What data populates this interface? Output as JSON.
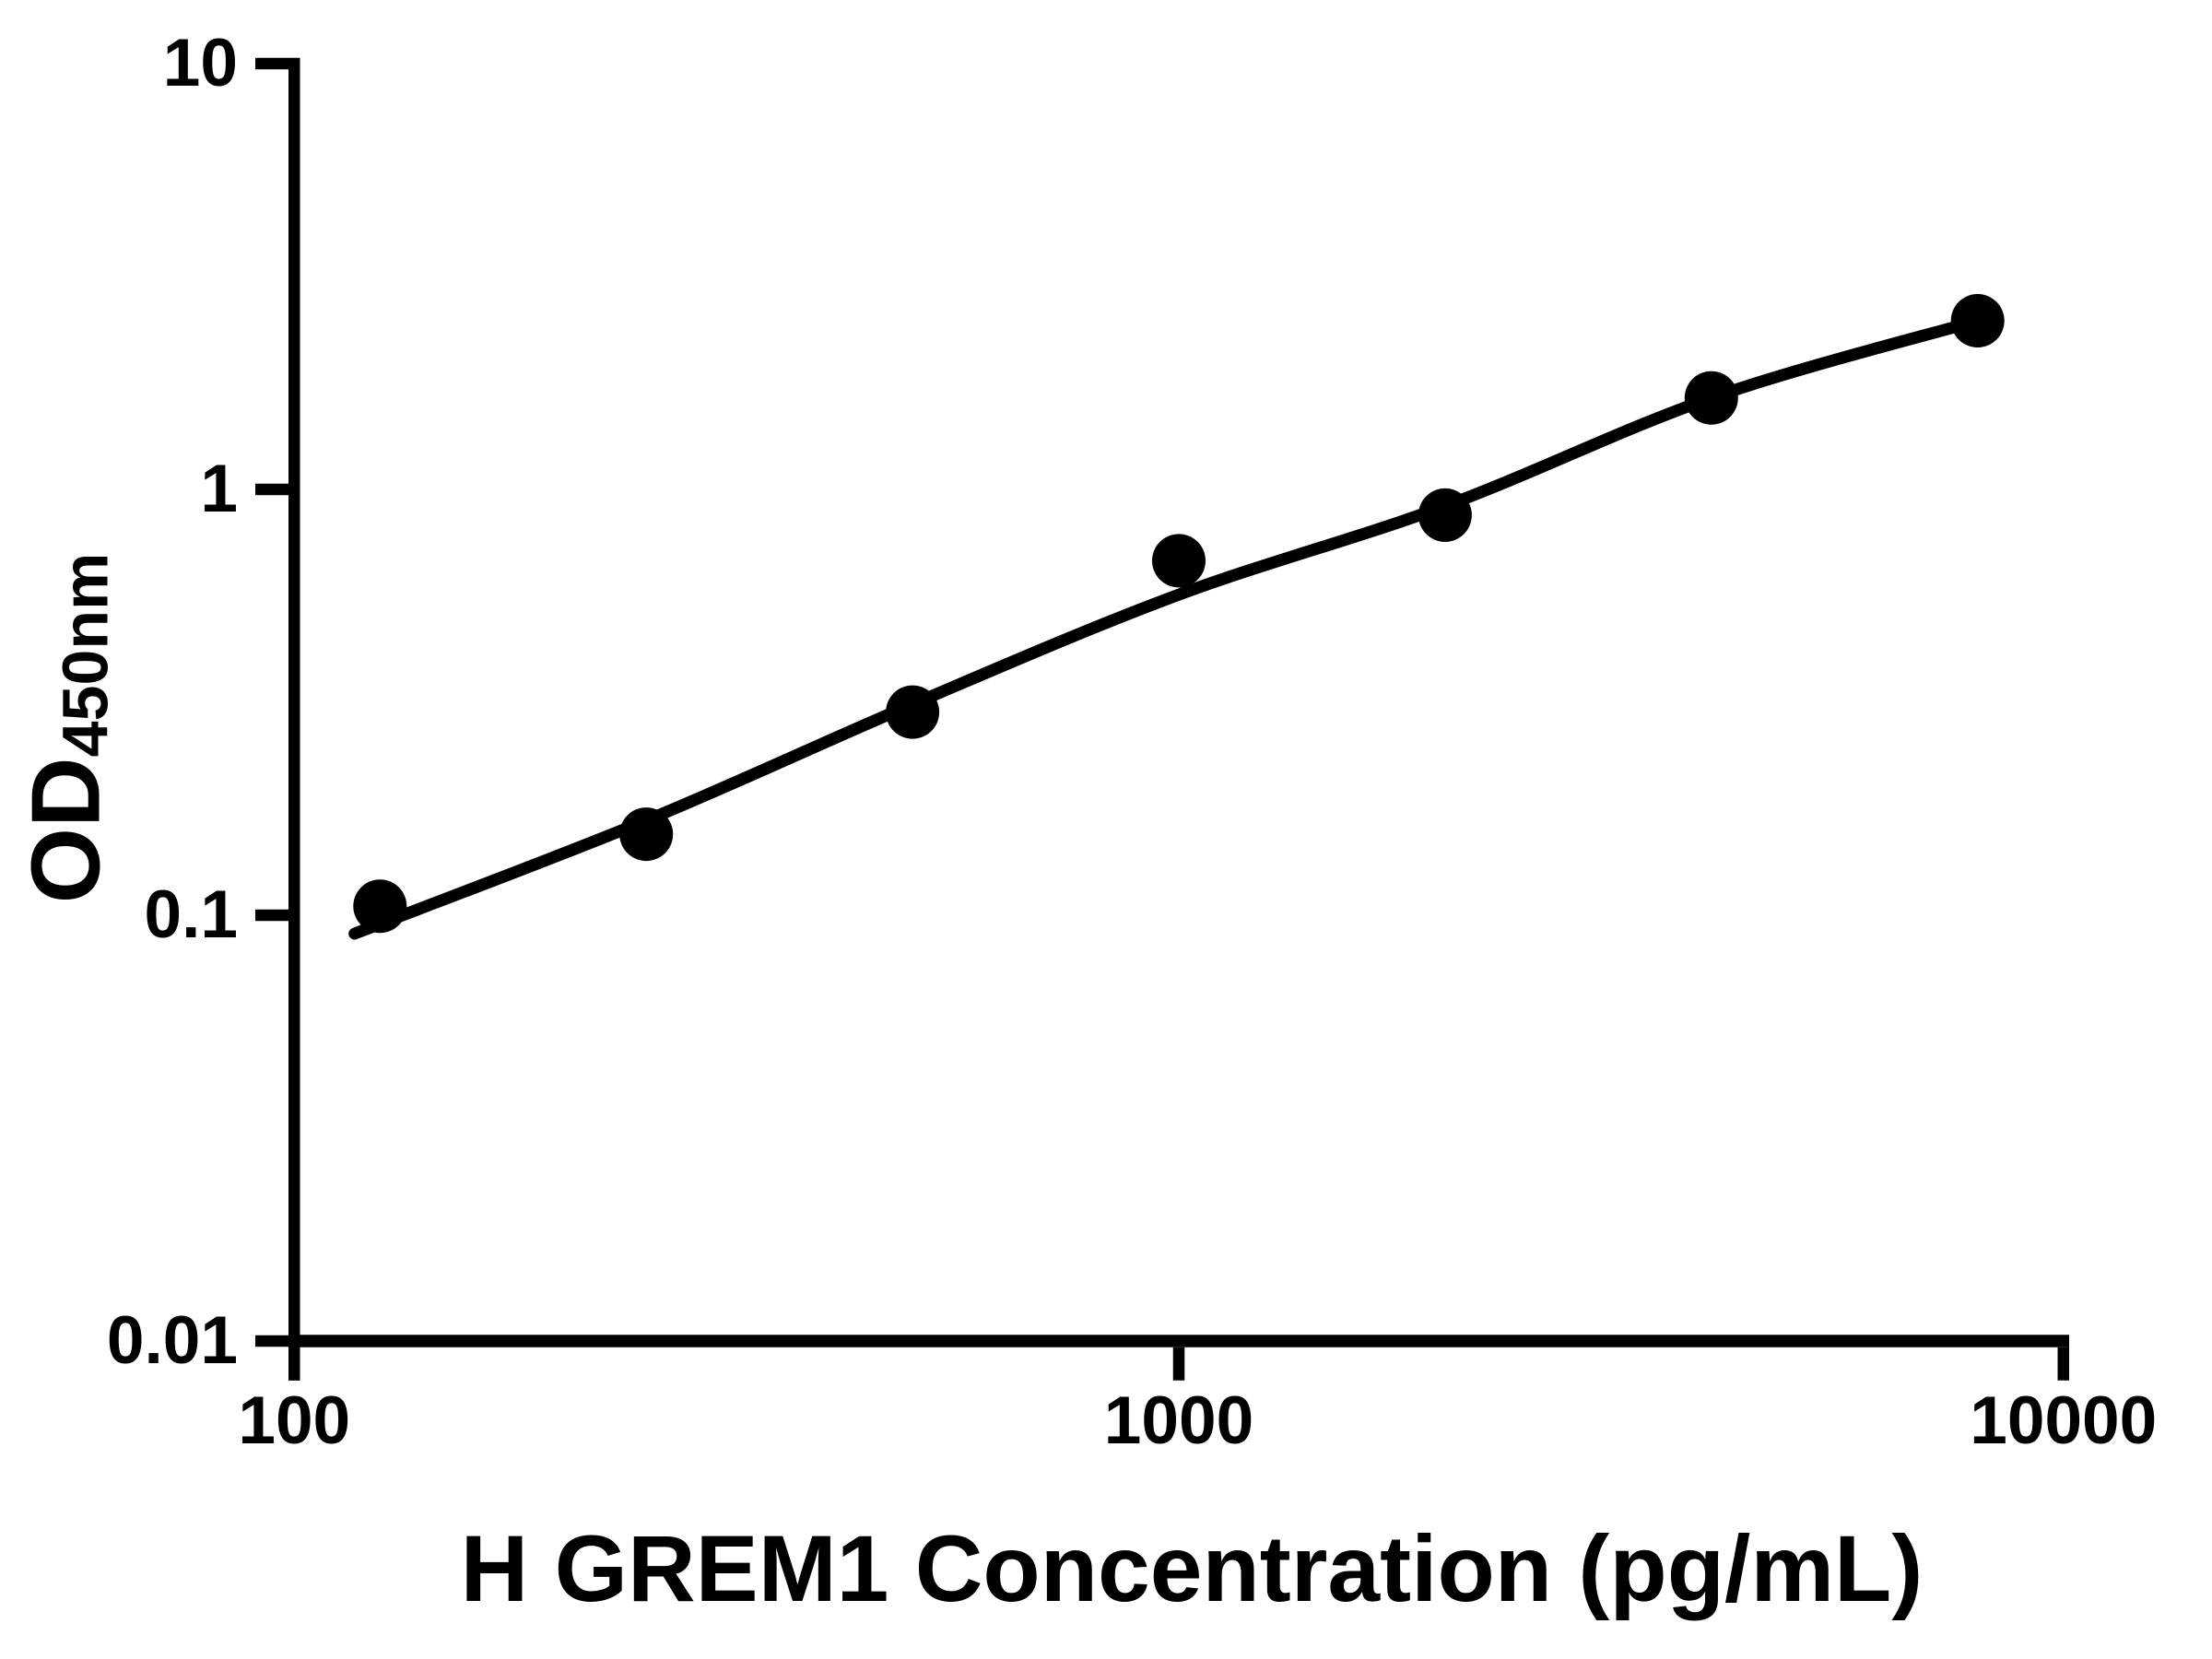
{
  "figure": {
    "background": "#ffffff",
    "ink_color": "#000000"
  },
  "chart_data": {
    "type": "scatter",
    "title": "",
    "xlabel": "H GREM1 Concentration (pg/mL)",
    "ylabel_main": "OD",
    "ylabel_sub": "450nm",
    "x_scale": "log",
    "y_scale": "log",
    "xlim": [
      100,
      10000
    ],
    "ylim": [
      0.01,
      10
    ],
    "grid": false,
    "legend_position": "none",
    "x_tick_values": [
      100,
      1000,
      10000
    ],
    "x_tick_labels": [
      "100",
      "1000",
      "10000"
    ],
    "y_tick_values": [
      10,
      1,
      0.1,
      0.01
    ],
    "y_tick_labels": [
      "10",
      "1",
      "0.1",
      "0.01"
    ],
    "series": [
      {
        "name": "standard-points",
        "type": "scatter",
        "marker": "circle",
        "color": "#000000",
        "x": [
          125,
          250,
          500,
          1000,
          2000,
          4000,
          8000
        ],
        "y": [
          0.105,
          0.155,
          0.3,
          0.68,
          0.87,
          1.64,
          2.49
        ]
      },
      {
        "name": "fitted-curve",
        "type": "line",
        "color": "#000000",
        "x": [
          117,
          250,
          500,
          1000,
          2000,
          4000,
          8000
        ],
        "y": [
          0.0905,
          0.167,
          0.313,
          0.566,
          0.914,
          1.64,
          2.49
        ]
      }
    ]
  }
}
